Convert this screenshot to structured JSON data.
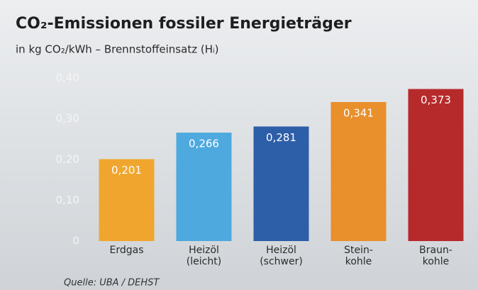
{
  "chart_data": {
    "type": "bar",
    "title": "CO₂-Emissionen fossiler Energieträger",
    "subtitle": "in kg CO₂/kWh – Brennstoffeinsatz (Hᵢ)",
    "categories": [
      "Erdgas",
      "Heizöl\n(leicht)",
      "Heizöl\n(schwer)",
      "Stein-\nkohle",
      "Braun-\nkohle"
    ],
    "values": [
      0.201,
      0.266,
      0.281,
      0.341,
      0.373
    ],
    "value_labels": [
      "0,201",
      "0,266",
      "0,281",
      "0,341",
      "0,373"
    ],
    "colors": [
      "#f0a62e",
      "#4ea9de",
      "#2d5ea8",
      "#e98f2b",
      "#b72a2b"
    ],
    "ylim": [
      0,
      0.4
    ],
    "yticks": [
      0,
      {
        "value": 0.1,
        "label": "0,10"
      },
      {
        "value": 0.2,
        "label": "0,20"
      },
      {
        "value": 0.3,
        "label": "0,30"
      },
      {
        "value": 0.4,
        "label": "0,40"
      }
    ],
    "grid": false,
    "source": "Quelle: UBA / DEHST"
  }
}
